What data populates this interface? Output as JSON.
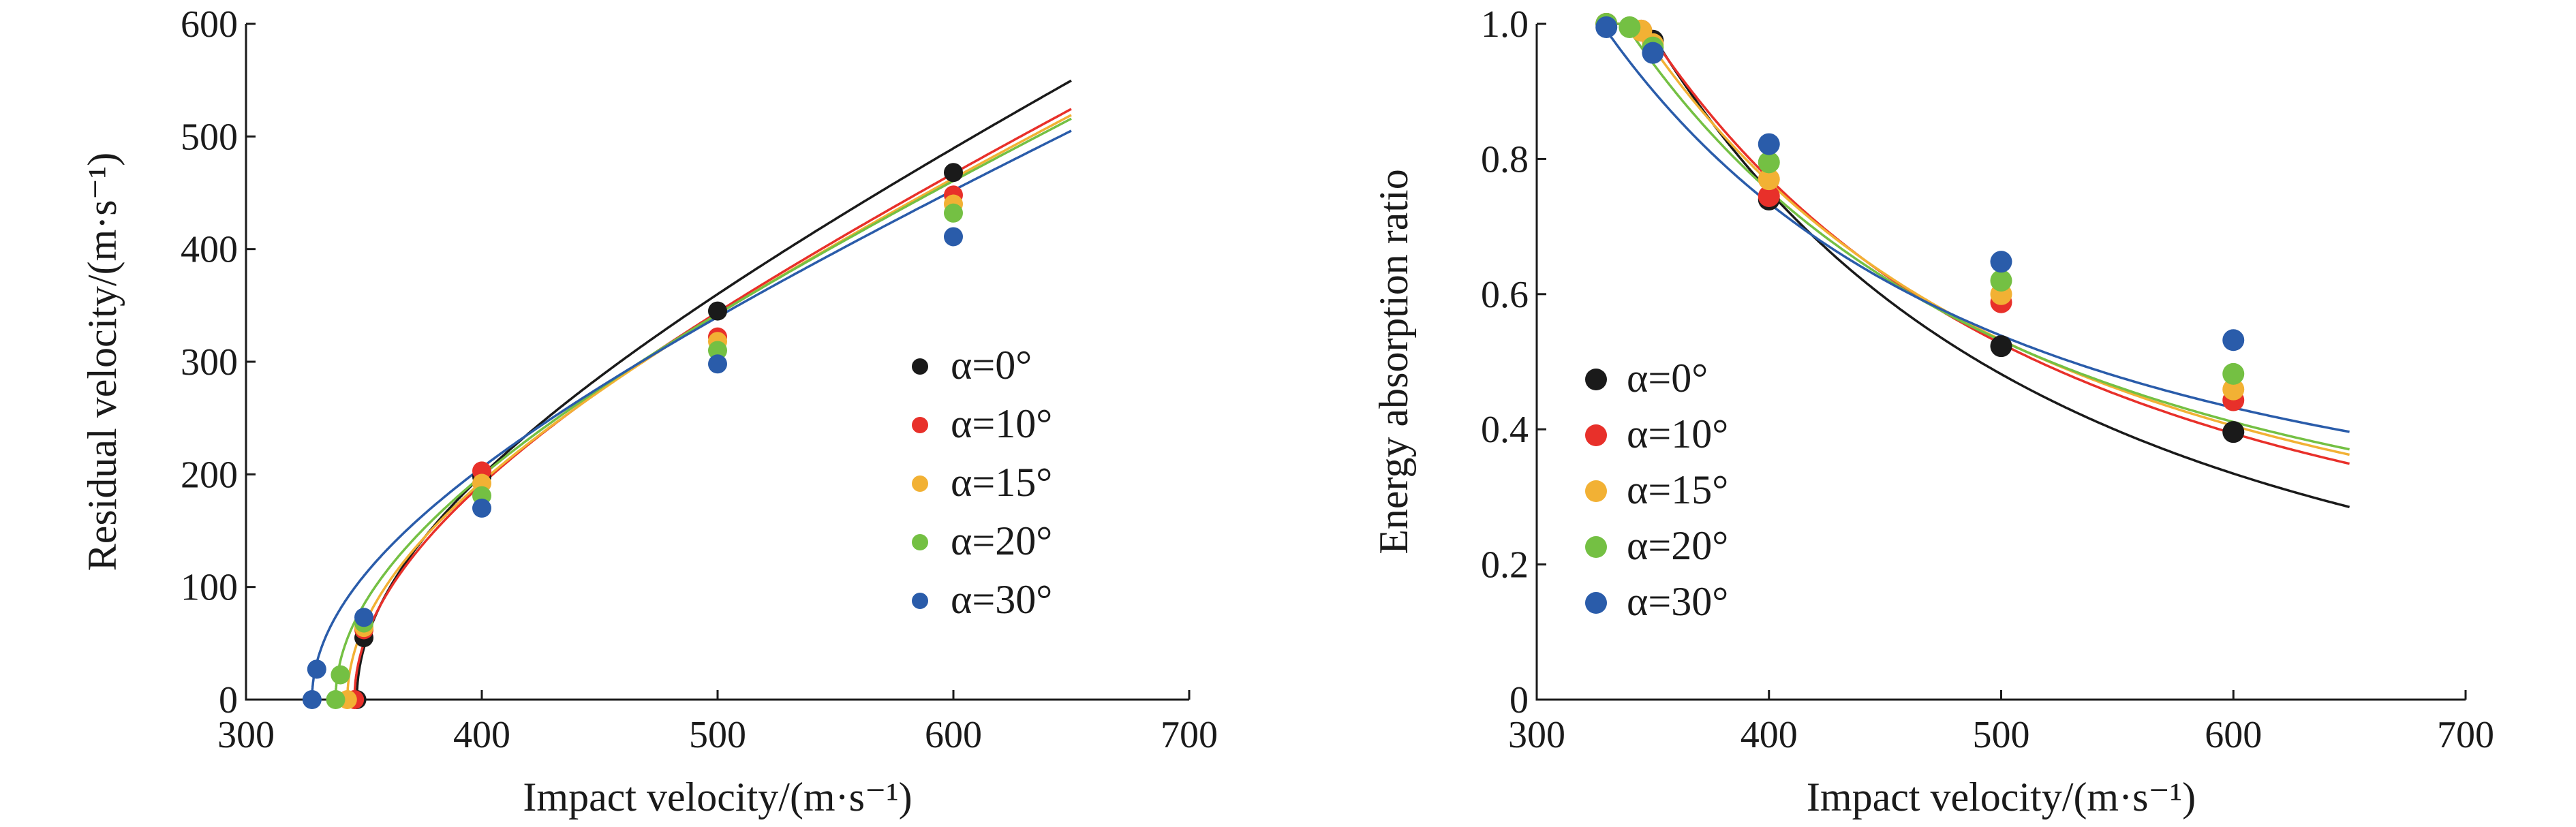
{
  "chart_data": [
    {
      "type": "scatter",
      "xlabel": "Impact velocity/(m·s⁻¹)",
      "ylabel": "Residual velocity/(m·s⁻¹)",
      "xlim": [
        300,
        700
      ],
      "ylim": [
        0,
        600
      ],
      "x_ticks": [
        "300",
        "400",
        "500",
        "600",
        "700"
      ],
      "y_ticks": [
        "0",
        "100",
        "200",
        "300",
        "400",
        "500",
        "600"
      ],
      "legend_position": "right",
      "grid": false,
      "series": [
        {
          "name": "α=0°",
          "color": "#1a1a1a",
          "x": [
            347,
            350,
            400,
            500,
            600
          ],
          "y": [
            0,
            55,
            198,
            345,
            468
          ],
          "curve": {
            "kind": "ballistic",
            "v0": 347,
            "a": 1.0,
            "p": 2.0,
            "xmax": 650
          }
        },
        {
          "name": "α=10°",
          "color": "#e8302a",
          "x": [
            346,
            350,
            400,
            500,
            600
          ],
          "y": [
            0,
            62,
            203,
            322,
            448
          ],
          "curve": {
            "kind": "ballistic",
            "v0": 346,
            "a": 0.953,
            "p": 2.0,
            "xmax": 650
          }
        },
        {
          "name": "α=15°",
          "color": "#f2b134",
          "x": [
            343,
            350,
            400,
            500,
            600
          ],
          "y": [
            0,
            64,
            192,
            318,
            440
          ],
          "curve": {
            "kind": "ballistic",
            "v0": 343,
            "a": 0.94,
            "p": 2.0,
            "xmax": 650
          }
        },
        {
          "name": "α=20°",
          "color": "#74c043",
          "x": [
            338,
            340,
            350,
            400,
            500,
            600
          ],
          "y": [
            0,
            22,
            68,
            181,
            310,
            432
          ],
          "curve": {
            "kind": "ballistic",
            "v0": 338,
            "a": 0.929,
            "p": 2.0,
            "xmax": 650
          }
        },
        {
          "name": "α=30°",
          "color": "#2a5caa",
          "x": [
            328,
            330,
            350,
            400,
            500,
            600
          ],
          "y": [
            0,
            27,
            73,
            170,
            298,
            411
          ],
          "curve": {
            "kind": "ballistic",
            "v0": 328,
            "a": 0.9,
            "p": 2.0,
            "xmax": 650
          }
        }
      ]
    },
    {
      "type": "scatter",
      "xlabel": "Impact velocity/(m·s⁻¹)",
      "ylabel": "Energy absorption ratio",
      "xlim": [
        300,
        700
      ],
      "ylim": [
        0,
        1.0
      ],
      "x_ticks": [
        "300",
        "400",
        "500",
        "600",
        "700"
      ],
      "y_ticks": [
        "0",
        "0.2",
        "0.4",
        "0.6",
        "0.8",
        "1.0"
      ],
      "legend_position": "bottom-left",
      "grid": false,
      "series": [
        {
          "name": "α=0°",
          "color": "#1a1a1a",
          "x": [
            330,
            350,
            400,
            500,
            600
          ],
          "y": [
            1.0,
            0.975,
            0.74,
            0.523,
            0.396
          ],
          "curve": {
            "kind": "ballistic",
            "v0": 347,
            "a": 1.0,
            "p": 2.0,
            "xmax": 650
          }
        },
        {
          "name": "α=10°",
          "color": "#e8302a",
          "x": [
            330,
            345,
            400,
            500,
            600
          ],
          "y": [
            1.0,
            0.99,
            0.745,
            0.588,
            0.443
          ],
          "curve": {
            "kind": "ballistic",
            "v0": 346,
            "a": 0.953,
            "p": 2.0,
            "xmax": 650
          }
        },
        {
          "name": "α=15°",
          "color": "#f2b134",
          "x": [
            330,
            345,
            350,
            400,
            500,
            600
          ],
          "y": [
            1.0,
            0.99,
            0.97,
            0.77,
            0.6,
            0.459
          ],
          "curve": {
            "kind": "ballistic",
            "v0": 343,
            "a": 0.94,
            "p": 2.0,
            "xmax": 650
          }
        },
        {
          "name": "α=20°",
          "color": "#74c043",
          "x": [
            330,
            340,
            350,
            400,
            500,
            600
          ],
          "y": [
            1.0,
            0.995,
            0.965,
            0.795,
            0.62,
            0.482
          ],
          "curve": {
            "kind": "ballistic",
            "v0": 338,
            "a": 0.929,
            "p": 2.0,
            "xmax": 650
          }
        },
        {
          "name": "α=30°",
          "color": "#2a5caa",
          "x": [
            330,
            350,
            400,
            500,
            600
          ],
          "y": [
            0.995,
            0.957,
            0.822,
            0.648,
            0.532
          ],
          "curve": {
            "kind": "ballistic",
            "v0": 328,
            "a": 0.9,
            "p": 2.0,
            "xmax": 650
          }
        }
      ]
    }
  ]
}
